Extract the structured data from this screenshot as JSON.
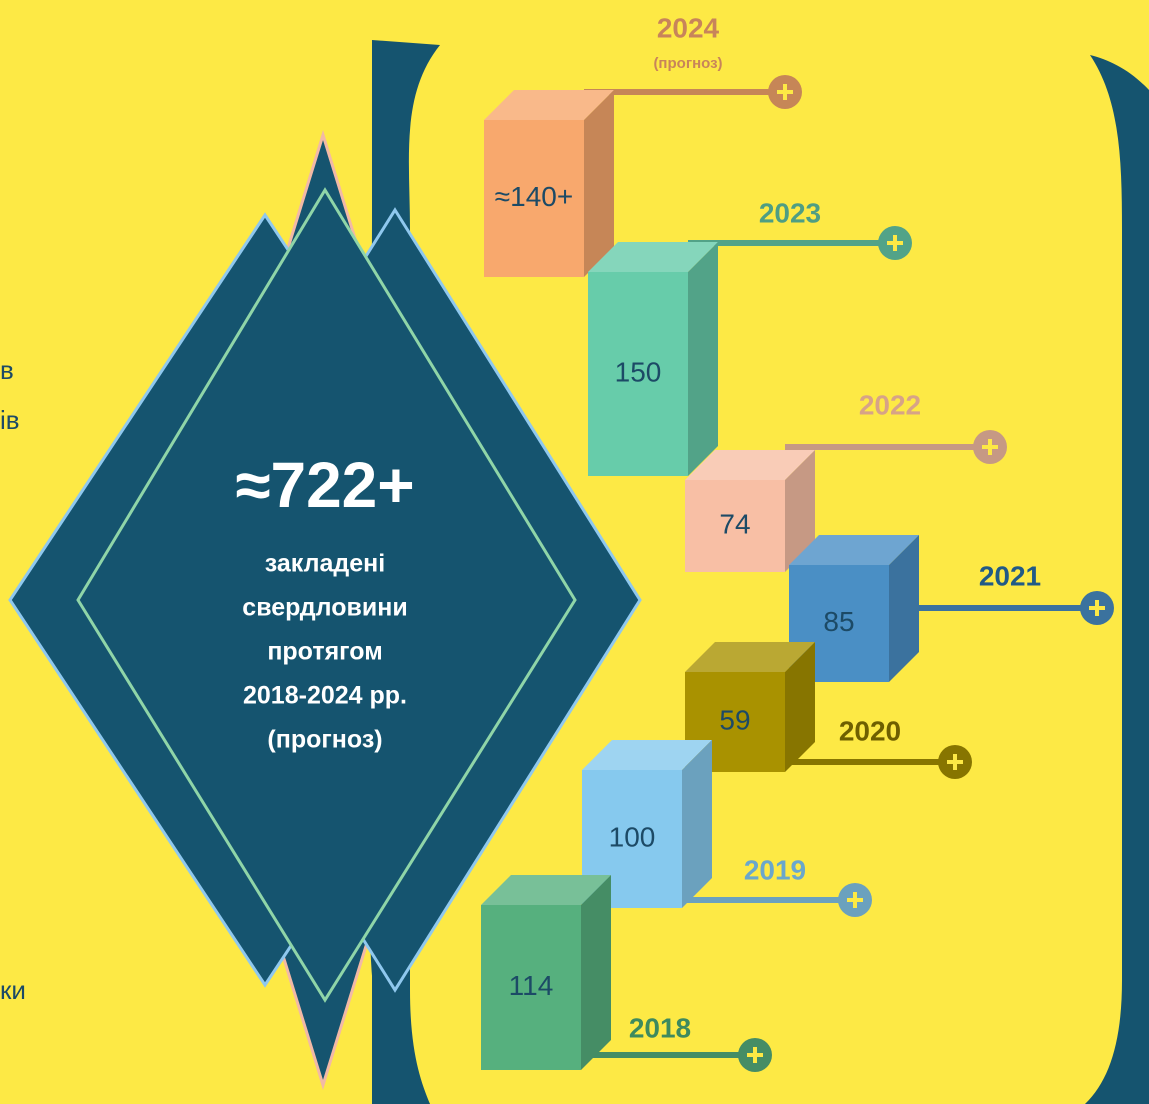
{
  "summary": {
    "value": "≈722+",
    "caption_lines": [
      "закладені",
      "свердловини",
      "протягом",
      "2018-2024 рр.",
      "(прогноз)"
    ]
  },
  "fragments": [
    "в",
    "ів",
    "ки"
  ],
  "years": [
    {
      "year": "2024",
      "note": "(прогноз)",
      "count": "≈140+",
      "color": "#f8a86d"
    },
    {
      "year": "2023",
      "count": "150",
      "color": "#67ccaa"
    },
    {
      "year": "2022",
      "count": "74",
      "color": "#f8bfa5"
    },
    {
      "year": "2021",
      "count": "85",
      "color": "#4a8fc5"
    },
    {
      "year": "2020",
      "count": "59",
      "color": "#a99200"
    },
    {
      "year": "2019",
      "count": "100",
      "color": "#86c9ee"
    },
    {
      "year": "2018",
      "count": "114",
      "color": "#56b07e"
    }
  ]
}
